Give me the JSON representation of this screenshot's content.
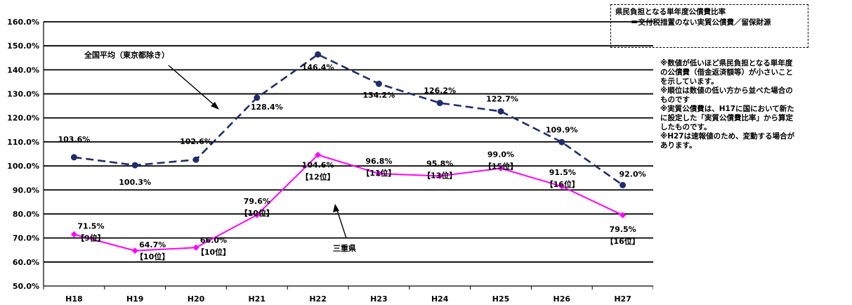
{
  "chart_data": {
    "type": "line",
    "categories": [
      "H18",
      "H19",
      "H20",
      "H21",
      "H22",
      "H23",
      "H24",
      "H25",
      "H26",
      "H27"
    ],
    "ylim": [
      50,
      160
    ],
    "yticks": [
      "50.0%",
      "60.0%",
      "70.0%",
      "80.0%",
      "90.0%",
      "100.0%",
      "110.0%",
      "120.0%",
      "130.0%",
      "140.0%",
      "150.0%",
      "160.0%"
    ],
    "grid": true,
    "series": [
      {
        "name": "全国平均（東京都除き）",
        "color": "#1f2d6e",
        "values": [
          103.6,
          100.3,
          102.6,
          128.4,
          146.4,
          134.2,
          126.2,
          122.7,
          109.9,
          92.0
        ],
        "labels": [
          "103.6%",
          "100.3%",
          "102.6%",
          "128.4%",
          "146.4%",
          "134.2%",
          "126.2%",
          "122.7%",
          "109.9%",
          "92.0%"
        ]
      },
      {
        "name": "三重県",
        "color": "#ff00ff",
        "values": [
          71.5,
          64.7,
          66.0,
          79.6,
          104.6,
          96.8,
          95.8,
          99.0,
          91.5,
          79.5
        ],
        "labels": [
          "71.5%",
          "64.7%",
          "66.0%",
          "79.6%",
          "104.6%",
          "96.8%",
          "95.8%",
          "99.0%",
          "91.5%",
          "79.5%"
        ],
        "ranks": [
          "【9位】",
          "【10位】",
          "【10位】",
          "【10位】",
          "【12位】",
          "【11位】",
          "【13位】",
          "【15位】",
          "【16位】",
          "【16位】"
        ]
      }
    ]
  },
  "legend_box": {
    "line1": "県民負担となる単年度公債費比率",
    "line2": "＝交付税措置のない実質公債費／留保財源"
  },
  "notes": [
    "※数値が低いほど県民負担となる単年度",
    "の公債費（借金返済額等）が小さいこと",
    "を示しています。",
    "※順位は数値の低い方から並べた場合の",
    "ものです",
    "※実質公債費は、H17に国において新た",
    "に設定した「実質公債費比率」から算定",
    "したものです。",
    "※H27は速報値のため、変動する場合が",
    "あります。"
  ]
}
